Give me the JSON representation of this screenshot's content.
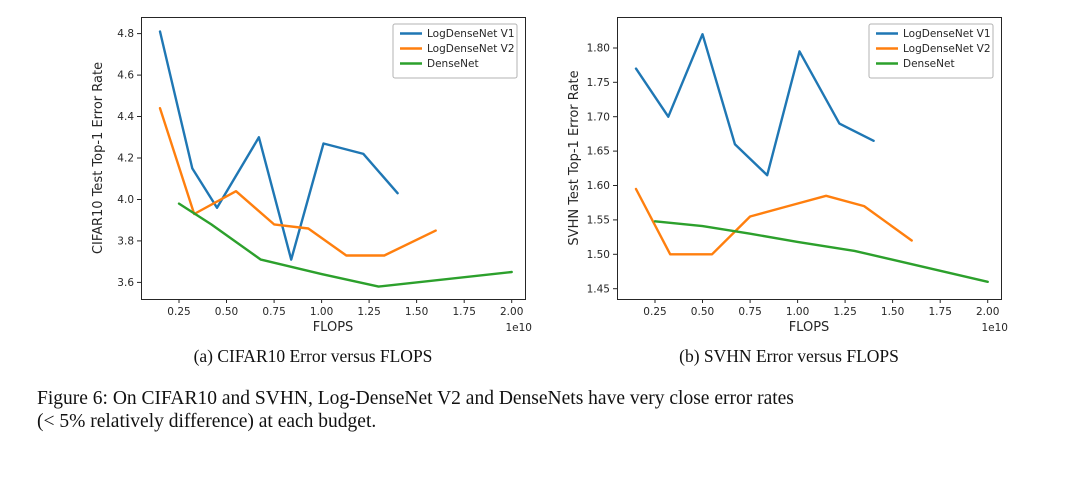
{
  "figure": {
    "subcaptions": [
      "(a) CIFAR10 Error versus FLOPS",
      "(b) SVHN Error versus FLOPS"
    ],
    "caption_line1": "Figure 6: On CIFAR10 and SVHN, Log-DenseNet V2 and DenseNets have very close error rates",
    "caption_line2": "(< 5% relatively difference) at each budget."
  },
  "colors": {
    "logdensenet_v1": "#1f77b4",
    "logdensenet_v2": "#ff7f0e",
    "densenet": "#2ca02c"
  },
  "chart_data": [
    {
      "type": "line",
      "title": "",
      "xlabel": "FLOPS",
      "ylabel": "CIFAR10 Test Top-1 Error Rate",
      "x_offset_label": "1e10",
      "xlim": [
        0.05,
        2.07
      ],
      "ylim": [
        3.52,
        4.88
      ],
      "xticks": [
        0.25,
        0.5,
        0.75,
        1.0,
        1.25,
        1.5,
        1.75,
        2.0
      ],
      "xtick_labels": [
        "0.25",
        "0.50",
        "0.75",
        "1.00",
        "1.25",
        "1.50",
        "1.75",
        "2.00"
      ],
      "yticks": [
        3.6,
        3.8,
        4.0,
        4.2,
        4.4,
        4.6,
        4.8
      ],
      "ytick_labels": [
        "3.6",
        "3.8",
        "4.0",
        "4.2",
        "4.4",
        "4.6",
        "4.8"
      ],
      "grid": false,
      "legend_position": "upper right",
      "series": [
        {
          "name": "LogDenseNet V1",
          "color": "#1f77b4",
          "x": [
            0.15,
            0.32,
            0.45,
            0.67,
            0.84,
            1.01,
            1.22,
            1.4
          ],
          "y": [
            4.81,
            4.15,
            3.96,
            4.3,
            3.71,
            4.27,
            4.22,
            4.03
          ]
        },
        {
          "name": "LogDenseNet V2",
          "color": "#ff7f0e",
          "x": [
            0.15,
            0.33,
            0.55,
            0.75,
            0.93,
            1.13,
            1.33,
            1.6
          ],
          "y": [
            4.44,
            3.93,
            4.04,
            3.88,
            3.86,
            3.73,
            3.73,
            3.85
          ]
        },
        {
          "name": "DenseNet",
          "color": "#2ca02c",
          "x": [
            0.25,
            0.42,
            0.68,
            1.0,
            1.3,
            2.0
          ],
          "y": [
            3.98,
            3.88,
            3.71,
            3.64,
            3.58,
            3.65
          ]
        }
      ]
    },
    {
      "type": "line",
      "title": "",
      "xlabel": "FLOPS",
      "ylabel": "SVHN Test Top-1 Error Rate",
      "x_offset_label": "1e10",
      "xlim": [
        0.05,
        2.07
      ],
      "ylim": [
        1.435,
        1.845
      ],
      "xticks": [
        0.25,
        0.5,
        0.75,
        1.0,
        1.25,
        1.5,
        1.75,
        2.0
      ],
      "xtick_labels": [
        "0.25",
        "0.50",
        "0.75",
        "1.00",
        "1.25",
        "1.50",
        "1.75",
        "2.00"
      ],
      "yticks": [
        1.45,
        1.5,
        1.55,
        1.6,
        1.65,
        1.7,
        1.75,
        1.8
      ],
      "ytick_labels": [
        "1.45",
        "1.50",
        "1.55",
        "1.60",
        "1.65",
        "1.70",
        "1.75",
        "1.80"
      ],
      "grid": false,
      "legend_position": "upper right",
      "series": [
        {
          "name": "LogDenseNet V1",
          "color": "#1f77b4",
          "x": [
            0.15,
            0.32,
            0.5,
            0.67,
            0.84,
            1.01,
            1.22,
            1.4
          ],
          "y": [
            1.77,
            1.7,
            1.82,
            1.66,
            1.615,
            1.795,
            1.69,
            1.665
          ]
        },
        {
          "name": "LogDenseNet V2",
          "color": "#ff7f0e",
          "x": [
            0.15,
            0.33,
            0.55,
            0.75,
            0.95,
            1.15,
            1.35,
            1.6
          ],
          "y": [
            1.595,
            1.5,
            1.5,
            1.555,
            1.57,
            1.585,
            1.57,
            1.52
          ]
        },
        {
          "name": "DenseNet",
          "color": "#2ca02c",
          "x": [
            0.25,
            0.5,
            0.75,
            1.0,
            1.3,
            2.0
          ],
          "y": [
            1.548,
            1.541,
            1.53,
            1.518,
            1.505,
            1.46
          ]
        }
      ]
    }
  ]
}
